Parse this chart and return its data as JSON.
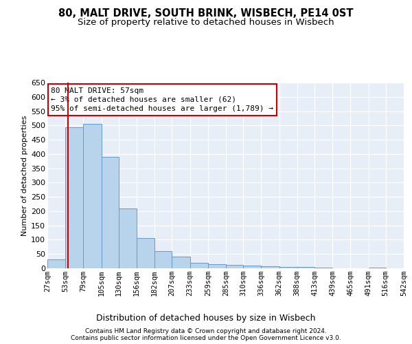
{
  "title1": "80, MALT DRIVE, SOUTH BRINK, WISBECH, PE14 0ST",
  "title2": "Size of property relative to detached houses in Wisbech",
  "xlabel": "Distribution of detached houses by size in Wisbech",
  "ylabel": "Number of detached properties",
  "footnote1": "Contains HM Land Registry data © Crown copyright and database right 2024.",
  "footnote2": "Contains public sector information licensed under the Open Government Licence v3.0.",
  "annotation_line1": "80 MALT DRIVE: 57sqm",
  "annotation_line2": "← 3% of detached houses are smaller (62)",
  "annotation_line3": "95% of semi-detached houses are larger (1,789) →",
  "bar_color": "#b8d4ec",
  "bar_edge_color": "#6699cc",
  "redline_color": "#cc0000",
  "redline_x": 57,
  "bins": [
    27,
    53,
    79,
    105,
    130,
    156,
    182,
    207,
    233,
    259,
    285,
    310,
    336,
    362,
    388,
    413,
    439,
    465,
    491,
    516,
    542
  ],
  "values": [
    32,
    494,
    505,
    390,
    210,
    107,
    59,
    40,
    20,
    14,
    11,
    10,
    7,
    5,
    4,
    2,
    1,
    0,
    3,
    0,
    2
  ],
  "ylim": [
    0,
    650
  ],
  "yticks": [
    0,
    50,
    100,
    150,
    200,
    250,
    300,
    350,
    400,
    450,
    500,
    550,
    600,
    650
  ],
  "background_color": "#e8eef8",
  "grid_color": "#ffffff",
  "title1_fontsize": 10.5,
  "title2_fontsize": 9.5,
  "ylabel_fontsize": 8,
  "xlabel_fontsize": 9,
  "tick_fontsize": 7.5,
  "ytick_fontsize": 8,
  "annot_fontsize": 8,
  "footnote_fontsize": 6.5
}
